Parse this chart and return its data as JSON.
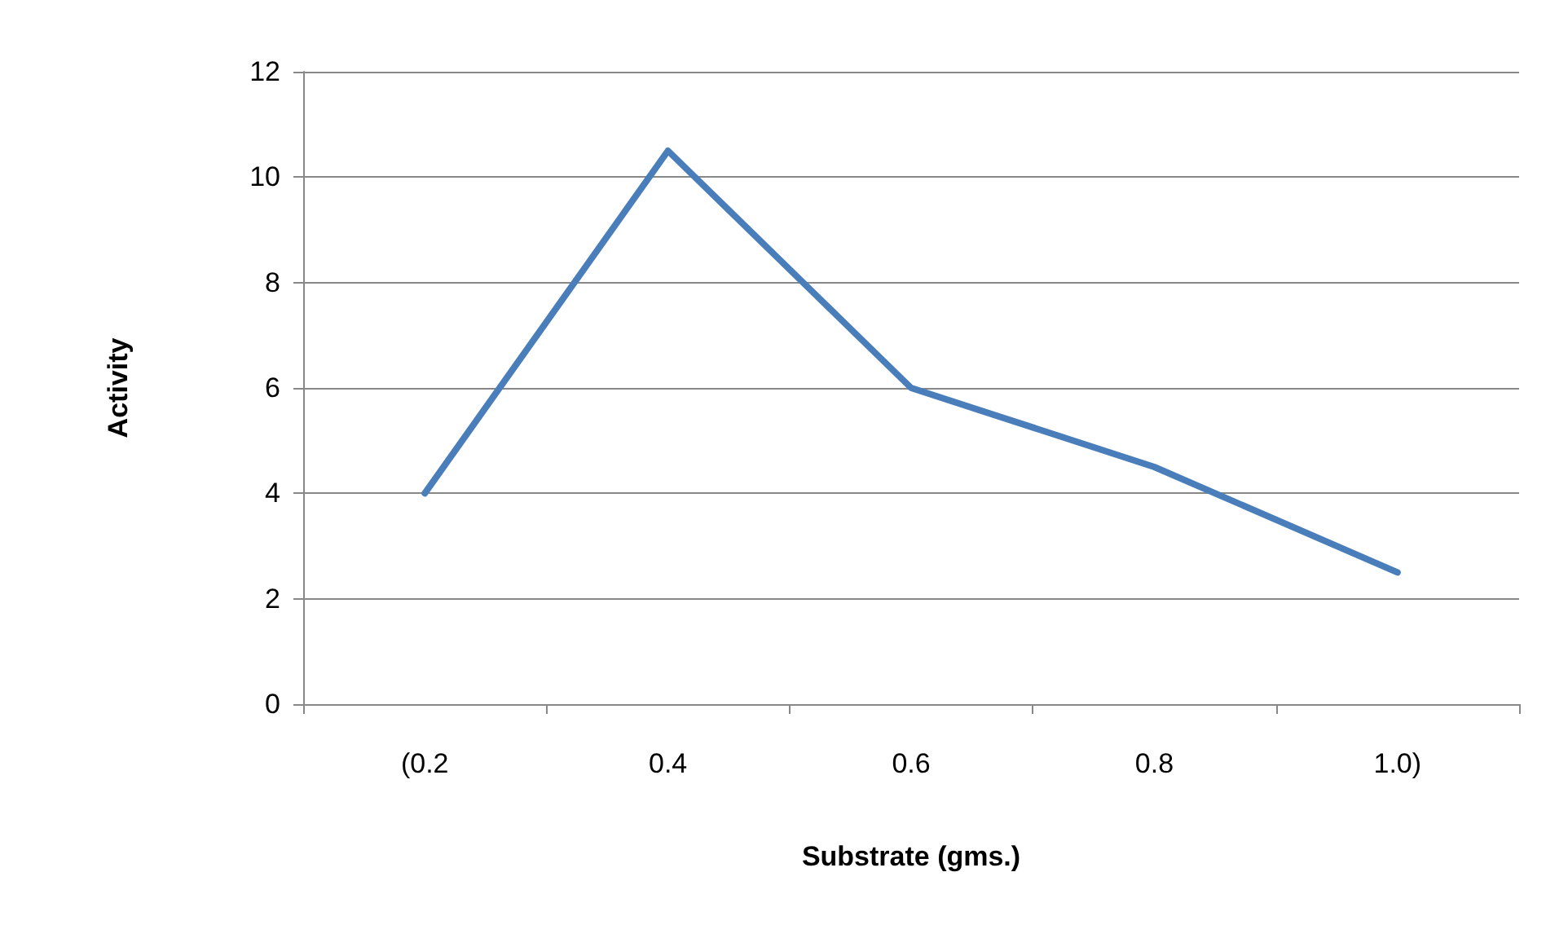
{
  "chart_data": {
    "type": "line",
    "xlabel": "Substrate (gms.)",
    "ylabel": "Activity",
    "categories": [
      "(0.2",
      "0.4",
      "0.6",
      "0.8",
      "1.0)"
    ],
    "series": [
      {
        "color": "#4a7ebb",
        "values": [
          4,
          10.5,
          6,
          4.5,
          2.5
        ]
      }
    ],
    "ylim": [
      0,
      12
    ],
    "yticks": [
      0,
      2,
      4,
      6,
      8,
      10,
      12
    ],
    "grid": "y",
    "marker": "none",
    "line_style": "solid"
  }
}
